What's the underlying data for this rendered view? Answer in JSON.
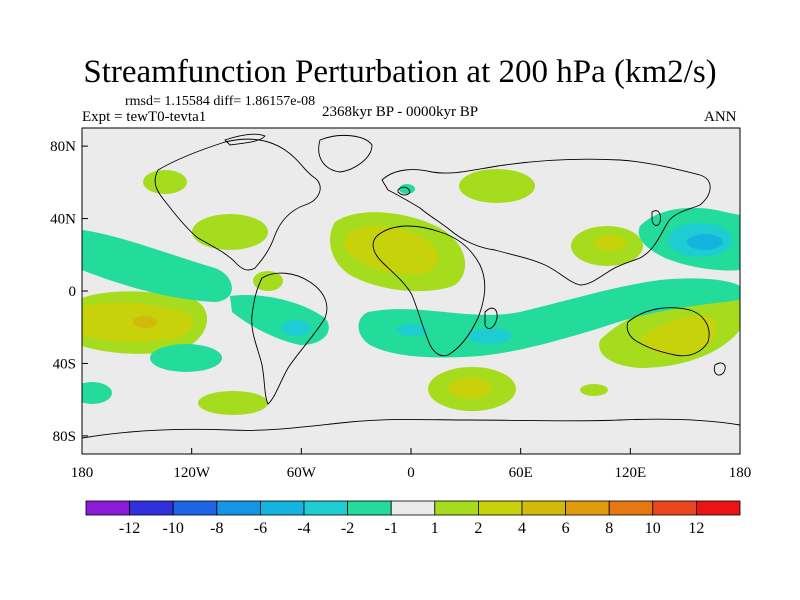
{
  "title": "Streamfunction Perturbation at 200 hPa (km2/s)",
  "stats_text": "rmsd= 1.15584 diff= 1.86157e-08",
  "experiment_text": "Expt = tewT0-tevta1",
  "period_text": "2368kyr BP - 0000kyr BP",
  "season": "ANN",
  "axes": {
    "lon_ticks": [
      "180",
      "120W",
      "60W",
      "0",
      "60E",
      "120E",
      "180"
    ],
    "lat_ticks": [
      "80N",
      "40N",
      "0",
      "40S",
      "80S"
    ]
  },
  "colorbar": {
    "colors": [
      "#8c1cd8",
      "#3030dc",
      "#1e64e6",
      "#1496e6",
      "#14b4e0",
      "#1ecdd2",
      "#23dc9b",
      "#ebebeb",
      "#a6dc1e",
      "#c8d20a",
      "#d2b90a",
      "#e19b0a",
      "#e67814",
      "#eb461e",
      "#eb1414"
    ],
    "labels": [
      "-12",
      "-10",
      "-8",
      "-6",
      "-4",
      "-2",
      "-1",
      "1",
      "2",
      "4",
      "6",
      "8",
      "10",
      "12"
    ]
  },
  "colors": {
    "background": "#ebebeb",
    "neg_weak": "#23dc9b",
    "neg_mid": "#1ecdd2",
    "pos_weak": "#a6dc1e",
    "pos_mid": "#c8d20a",
    "pos_strong": "#d2b90a",
    "pos_max": "#e19b0a"
  }
}
